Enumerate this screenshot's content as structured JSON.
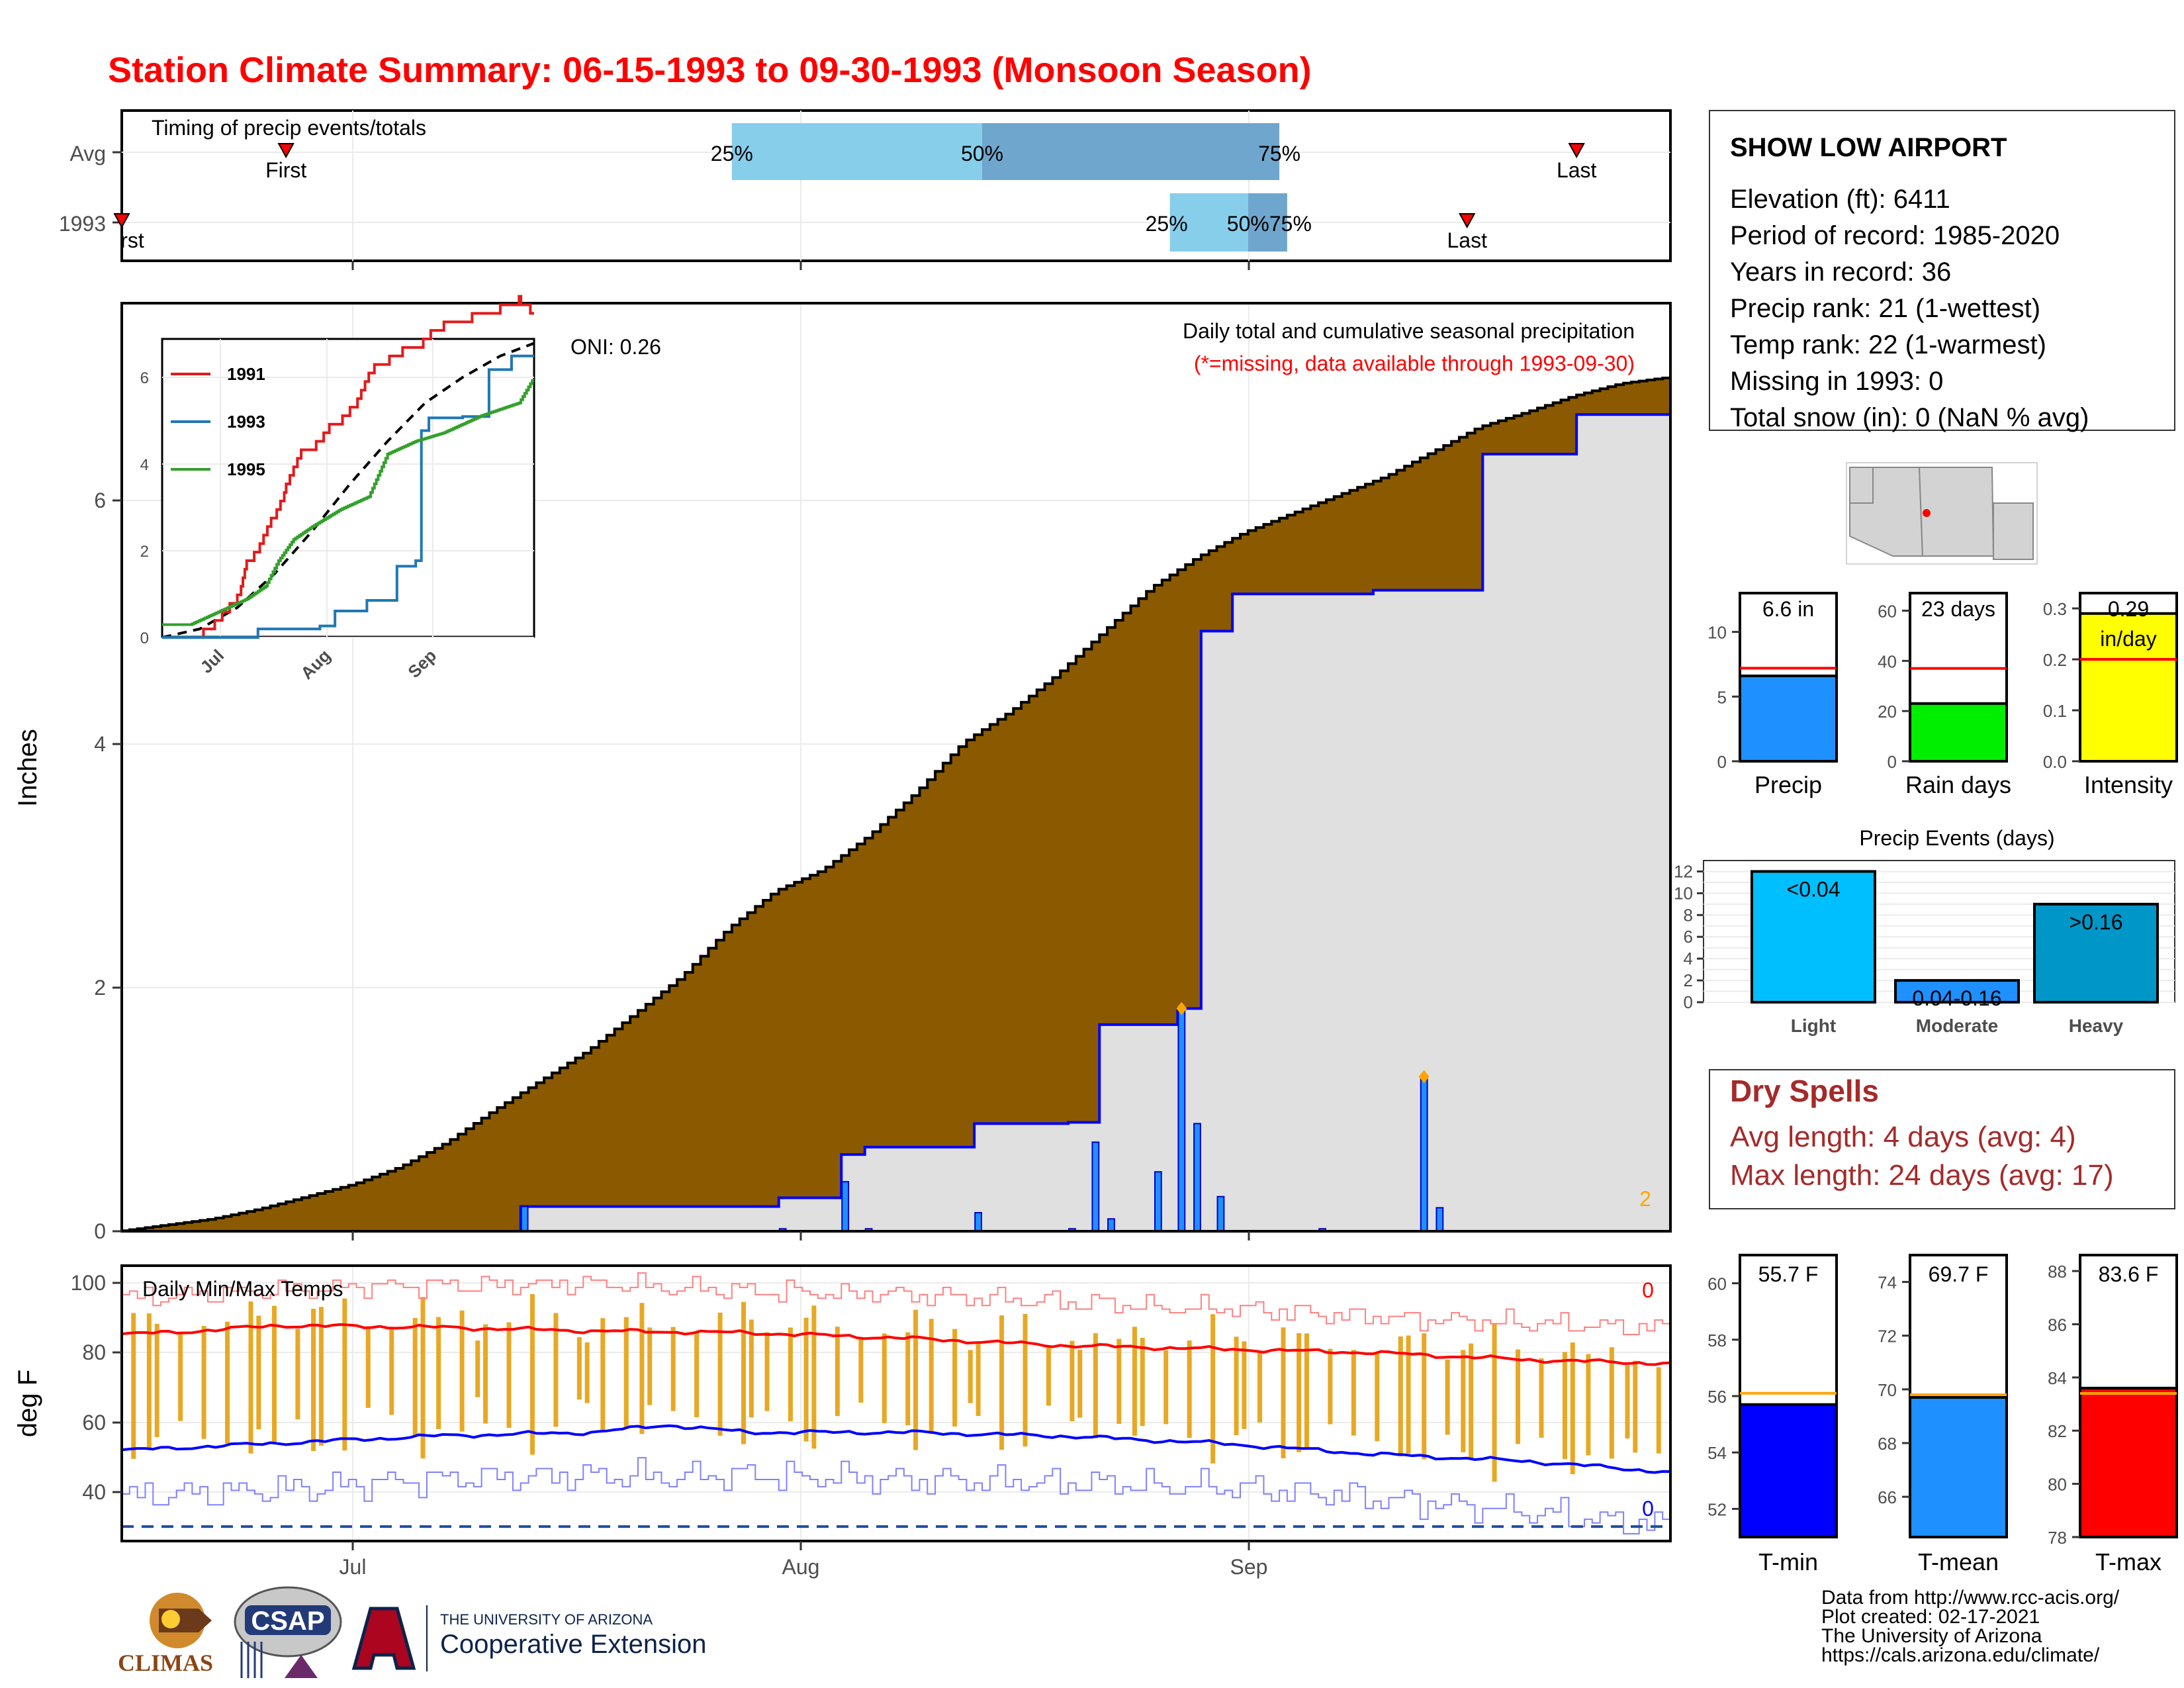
{
  "title": "Station Climate Summary: 06-15-1993 to 09-30-1993 (Monsoon Season)",
  "timing": {
    "title": "Timing of precip events/totals",
    "rows": [
      "Avg",
      "1993"
    ],
    "avg": {
      "first": "First",
      "last": "Last",
      "q25": "25%",
      "q50": "50%",
      "q75": "75%",
      "first_day": 21,
      "last_day": 186,
      "q25_day": 78,
      "q50_day": 110,
      "q75_day": 148
    },
    "y1993": {
      "first": "rst",
      "last": "Last",
      "q25": "25%",
      "q50": "50%",
      "q75": "75%",
      "first_day": 0,
      "last_day": 172,
      "q25_day": 134,
      "q50_day": 144,
      "q75_day": 149
    }
  },
  "precip_panel": {
    "oni": "ONI: 0.26",
    "title": "Daily total and cumulative seasonal precipitation",
    "subtitle": "(*=missing, data available through 1993-09-30)",
    "count": "2",
    "ylabel": "Inches",
    "yticks": [
      "0",
      "2",
      "4",
      "6"
    ]
  },
  "inset": {
    "legend": [
      "1991",
      "1993",
      "1995"
    ],
    "yticks": [
      "0",
      "2",
      "4",
      "6"
    ],
    "xticks": [
      "Jul",
      "Aug",
      "Sep"
    ]
  },
  "temp_panel": {
    "title": "Daily Min/Max Temps",
    "ylabel": "deg F",
    "yticks": [
      "40",
      "60",
      "80",
      "100"
    ],
    "count_top": "0",
    "count_bottom": "0"
  },
  "xticks": [
    "Jul",
    "Aug",
    "Sep"
  ],
  "station": {
    "name": "SHOW LOW AIRPORT",
    "lines": [
      "Elevation (ft): 6411",
      "Period of record: 1985-2020",
      "Years in record: 36",
      "Precip rank: 21 (1-wettest)",
      "Temp rank: 22 (1-warmest)",
      "Missing in 1993: 0",
      "Total snow (in): 0 (NaN % avg)"
    ]
  },
  "gauges": [
    {
      "label": "Precip",
      "value_text": "6.6 in",
      "value": 6.6,
      "avg": 7.2,
      "ymax": 13,
      "ticks": [
        "0",
        "5",
        "10"
      ],
      "tickvals": [
        0,
        5,
        10
      ],
      "color": "#1e90ff"
    },
    {
      "label": "Rain days",
      "value_text": "23 days",
      "value": 23,
      "avg": 37,
      "ymax": 67,
      "ticks": [
        "0",
        "20",
        "40",
        "60"
      ],
      "tickvals": [
        0,
        20,
        40,
        60
      ],
      "color": "#00ee00"
    },
    {
      "label": "Intensity",
      "value_text": "0.29",
      "value_text2": "in/day",
      "value": 0.29,
      "avg": 0.2,
      "ymax": 0.33,
      "ticks": [
        "0.0",
        "0.1",
        "0.2",
        "0.3"
      ],
      "tickvals": [
        0,
        0.1,
        0.2,
        0.3
      ],
      "color": "#ffff00"
    }
  ],
  "events": {
    "title": "Precip Events (days)",
    "categories": [
      "Light",
      "Moderate",
      "Heavy"
    ],
    "labels": [
      "<0.04",
      "0.04-0.16",
      ">0.16"
    ],
    "values": [
      12,
      2,
      9
    ],
    "yticks": [
      "0",
      "2",
      "4",
      "6",
      "8",
      "10",
      "12"
    ],
    "colors": [
      "#00bfff",
      "#1e90ff",
      "#0096c8"
    ]
  },
  "dry_spells": {
    "title": "Dry Spells",
    "avg": "Avg length: 4 days (avg: 4)",
    "max": "Max length: 24 days (avg: 17)"
  },
  "temp_gauges": [
    {
      "label": "T-min",
      "value_text": "55.7 F",
      "value": 55.7,
      "avg": 56.1,
      "ymin": 51,
      "ymax": 61,
      "ticks": [
        "52",
        "54",
        "56",
        "58",
        "60"
      ],
      "tickvals": [
        52,
        54,
        56,
        58,
        60
      ],
      "color": "#0000ff"
    },
    {
      "label": "T-mean",
      "value_text": "69.7 F",
      "value": 69.7,
      "avg": 69.8,
      "ymin": 64.5,
      "ymax": 75,
      "ticks": [
        "66",
        "68",
        "70",
        "72",
        "74"
      ],
      "tickvals": [
        66,
        68,
        70,
        72,
        74
      ],
      "color": "#1e90ff"
    },
    {
      "label": "T-max",
      "value_text": "83.6 F",
      "value": 83.6,
      "avg": 83.4,
      "ymin": 78,
      "ymax": 88.6,
      "ticks": [
        "78",
        "80",
        "82",
        "84",
        "86",
        "88"
      ],
      "tickvals": [
        78,
        80,
        82,
        84,
        86,
        88
      ],
      "color": "#ff0000"
    }
  ],
  "footer": {
    "lines": [
      "Data from http://www.rcc-acis.org/",
      "Plot created: 02-17-2021",
      "The University of Arizona",
      "https://cals.arizona.edu/climate/"
    ],
    "climas": "CLIMAS",
    "csap": "CSAP",
    "ua_top": "THE UNIVERSITY OF ARIZONA",
    "ua_bottom": "Cooperative Extension"
  },
  "chart_data": [
    {
      "type": "area",
      "name": "Daily total and cumulative seasonal precipitation",
      "x_start": "1993-06-15",
      "x_end": "1993-09-30",
      "ylabel": "Inches",
      "ylim": [
        0,
        7.5
      ],
      "avg_cumulative_knots": [
        [
          0,
          0
        ],
        [
          6,
          0.05
        ],
        [
          12,
          0.1
        ],
        [
          18,
          0.18
        ],
        [
          24,
          0.28
        ],
        [
          30,
          0.38
        ],
        [
          36,
          0.52
        ],
        [
          42,
          0.72
        ],
        [
          48,
          0.98
        ],
        [
          54,
          1.22
        ],
        [
          60,
          1.46
        ],
        [
          66,
          1.76
        ],
        [
          72,
          2.06
        ],
        [
          78,
          2.45
        ],
        [
          84,
          2.75
        ],
        [
          90,
          2.92
        ],
        [
          96,
          3.2
        ],
        [
          102,
          3.55
        ],
        [
          108,
          3.95
        ],
        [
          114,
          4.2
        ],
        [
          120,
          4.5
        ],
        [
          126,
          4.85
        ],
        [
          132,
          5.2
        ],
        [
          138,
          5.45
        ],
        [
          144,
          5.65
        ],
        [
          150,
          5.8
        ],
        [
          156,
          5.95
        ],
        [
          162,
          6.1
        ],
        [
          168,
          6.3
        ],
        [
          174,
          6.5
        ],
        [
          180,
          6.62
        ],
        [
          186,
          6.75
        ],
        [
          192,
          6.85
        ],
        [
          198,
          6.9
        ]
      ],
      "cumulative_1993_steps": [
        [
          0,
          0
        ],
        [
          51,
          0.2
        ],
        [
          84,
          0.27
        ],
        [
          92,
          0.62
        ],
        [
          95,
          0.68
        ],
        [
          109,
          0.87
        ],
        [
          121,
          0.88
        ],
        [
          125,
          1.67
        ],
        [
          135,
          1.8
        ],
        [
          138,
          4.85
        ],
        [
          142,
          5.15
        ],
        [
          160,
          5.18
        ],
        [
          174,
          6.28
        ],
        [
          186,
          6.6
        ],
        [
          198,
          6.6
        ]
      ],
      "daily_1993": [
        [
          51,
          0.2
        ],
        [
          84,
          0.02
        ],
        [
          92,
          0.4
        ],
        [
          95,
          0.02
        ],
        [
          109,
          0.15
        ],
        [
          121,
          0.02
        ],
        [
          124,
          0.72
        ],
        [
          126,
          0.1
        ],
        [
          132,
          0.48
        ],
        [
          135,
          1.8
        ],
        [
          137,
          0.87
        ],
        [
          140,
          0.28
        ],
        [
          153,
          0.02
        ],
        [
          166,
          1.25
        ],
        [
          168,
          0.19
        ]
      ]
    },
    {
      "type": "line",
      "name": "inset cumulative",
      "x_start": "1993-06-15",
      "x_end": "1993-09-30",
      "ylim": [
        0,
        7
      ],
      "series": [
        {
          "name": "1991",
          "knots": [
            [
              0,
              0
            ],
            [
              20,
              0
            ],
            [
              22,
              0.2
            ],
            [
              30,
              0.5
            ],
            [
              40,
              1
            ],
            [
              45,
              1.8
            ],
            [
              52,
              2.2
            ],
            [
              58,
              2.8
            ],
            [
              62,
              3.1
            ],
            [
              66,
              3.6
            ],
            [
              70,
              4
            ],
            [
              74,
              4.4
            ],
            [
              80,
              4.5
            ],
            [
              86,
              4.8
            ],
            [
              90,
              5.1
            ],
            [
              96,
              5.2
            ],
            [
              104,
              5.6
            ],
            [
              110,
              6.2
            ],
            [
              113,
              6.4
            ],
            [
              118,
              6.5
            ],
            [
              124,
              6.7
            ],
            [
              128,
              6.8
            ],
            [
              130,
              6.85
            ],
            [
              136,
              6.9
            ],
            [
              139,
              7
            ],
            [
              141,
              7.1
            ],
            [
              143,
              7.2
            ],
            [
              145,
              7.3
            ],
            [
              150,
              7.4
            ],
            [
              153,
              7.45
            ],
            [
              160,
              7.5
            ],
            [
              165,
              7.6
            ],
            [
              170,
              7.7
            ],
            [
              180,
              7.8
            ],
            [
              190,
              8
            ],
            [
              198,
              7.7
            ]
          ]
        },
        {
          "name": "1993",
          "knots": [
            [
              0,
              0
            ],
            [
              51,
              0.2
            ],
            [
              84,
              0.27
            ],
            [
              92,
              0.62
            ],
            [
              109,
              0.87
            ],
            [
              125,
              1.67
            ],
            [
              135,
              1.8
            ],
            [
              138,
              4.85
            ],
            [
              142,
              5.15
            ],
            [
              160,
              5.18
            ],
            [
              174,
              6.28
            ],
            [
              186,
              6.6
            ],
            [
              198,
              6.6
            ]
          ]
        },
        {
          "name": "1995",
          "knots": [
            [
              0,
              0.3
            ],
            [
              15,
              0.3
            ],
            [
              30,
              0.6
            ],
            [
              45,
              0.9
            ],
            [
              55,
              1.2
            ],
            [
              62,
              1.8
            ],
            [
              70,
              2.3
            ],
            [
              80,
              2.6
            ],
            [
              95,
              3
            ],
            [
              110,
              3.3
            ],
            [
              120,
              4.3
            ],
            [
              135,
              4.6
            ],
            [
              150,
              4.8
            ],
            [
              170,
              5.2
            ],
            [
              190,
              5.5
            ],
            [
              198,
              6.1
            ]
          ]
        }
      ],
      "average": [
        [
          0,
          0
        ],
        [
          20,
          0.2
        ],
        [
          40,
          0.7
        ],
        [
          60,
          1.5
        ],
        [
          80,
          2.5
        ],
        [
          100,
          3.6
        ],
        [
          120,
          4.6
        ],
        [
          140,
          5.5
        ],
        [
          160,
          6.1
        ],
        [
          180,
          6.6
        ],
        [
          198,
          6.9
        ]
      ]
    },
    {
      "type": "bar",
      "name": "Daily Min/Max Temps",
      "ylabel": "deg F",
      "ylim": [
        28,
        104
      ],
      "avg_max_knots": [
        [
          0,
          85
        ],
        [
          10,
          86
        ],
        [
          20,
          87.5
        ],
        [
          40,
          87
        ],
        [
          60,
          86
        ],
        [
          80,
          85.5
        ],
        [
          100,
          84
        ],
        [
          120,
          82
        ],
        [
          140,
          81
        ],
        [
          160,
          80
        ],
        [
          180,
          78
        ],
        [
          198,
          77
        ]
      ],
      "avg_min_knots": [
        [
          0,
          53
        ],
        [
          20,
          55
        ],
        [
          40,
          57
        ],
        [
          60,
          58
        ],
        [
          70,
          60
        ],
        [
          80,
          58
        ],
        [
          100,
          58
        ],
        [
          120,
          57
        ],
        [
          140,
          55
        ],
        [
          160,
          52
        ],
        [
          180,
          50
        ],
        [
          198,
          47
        ]
      ],
      "record_max_knots": [
        [
          0,
          95
        ],
        [
          30,
          98
        ],
        [
          60,
          99
        ],
        [
          80,
          97
        ],
        [
          100,
          96
        ],
        [
          120,
          94
        ],
        [
          140,
          92
        ],
        [
          160,
          90
        ],
        [
          180,
          88
        ],
        [
          198,
          87
        ]
      ],
      "record_min_knots": [
        [
          0,
          40
        ],
        [
          20,
          42
        ],
        [
          40,
          45
        ],
        [
          60,
          46
        ],
        [
          80,
          46
        ],
        [
          100,
          45
        ],
        [
          120,
          44
        ],
        [
          140,
          43
        ],
        [
          160,
          40
        ],
        [
          180,
          36
        ],
        [
          198,
          32
        ]
      ],
      "freeze_line": 32
    }
  ]
}
